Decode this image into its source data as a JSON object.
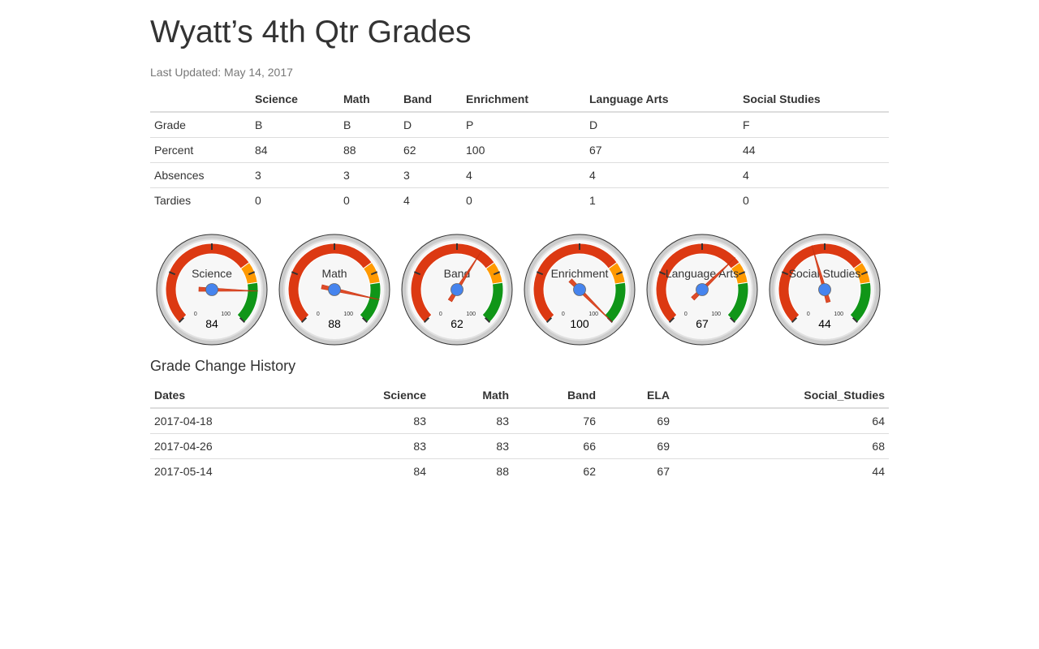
{
  "page": {
    "title": "Wyatt’s 4th Qtr Grades",
    "last_updated": "Last Updated: May 14, 2017"
  },
  "grades_table": {
    "headers": [
      "",
      "Science",
      "Math",
      "Band",
      "Enrichment",
      "Language Arts",
      "Social Studies"
    ],
    "rows": [
      [
        "Grade",
        "B",
        "B",
        "D",
        "P",
        "D",
        "F"
      ],
      [
        "Percent",
        "84",
        "88",
        "62",
        "100",
        "67",
        "44"
      ],
      [
        "Absences",
        "3",
        "3",
        "3",
        "4",
        "4",
        "4"
      ],
      [
        "Tardies",
        "0",
        "0",
        "4",
        "0",
        "1",
        "0"
      ]
    ]
  },
  "gauges": [
    {
      "label": "Science",
      "value": 84
    },
    {
      "label": "Math",
      "value": 88
    },
    {
      "label": "Band",
      "value": 62
    },
    {
      "label": "Enrichment",
      "value": 100
    },
    {
      "label": "Language Arts",
      "value": 67
    },
    {
      "label": "Social Studies",
      "value": 44
    }
  ],
  "gauge_scale": {
    "min": 0,
    "max": 100,
    "min_label": "0",
    "max_label": "100",
    "red_range": [
      0,
      70
    ],
    "yellow_range": [
      70,
      80
    ],
    "green_range": [
      80,
      100
    ],
    "colors": {
      "red": "#dc3912",
      "yellow": "#ff9900",
      "green": "#109618",
      "needle": "#dc3912",
      "hub": "#4684ee"
    }
  },
  "history": {
    "title": "Grade Change History",
    "headers": [
      "Dates",
      "Science",
      "Math",
      "Band",
      "ELA",
      "Social_Studies"
    ],
    "rows": [
      [
        "2017-04-18",
        "83",
        "83",
        "76",
        "69",
        "64"
      ],
      [
        "2017-04-26",
        "83",
        "83",
        "66",
        "69",
        "68"
      ],
      [
        "2017-05-14",
        "84",
        "88",
        "62",
        "67",
        "44"
      ]
    ]
  }
}
